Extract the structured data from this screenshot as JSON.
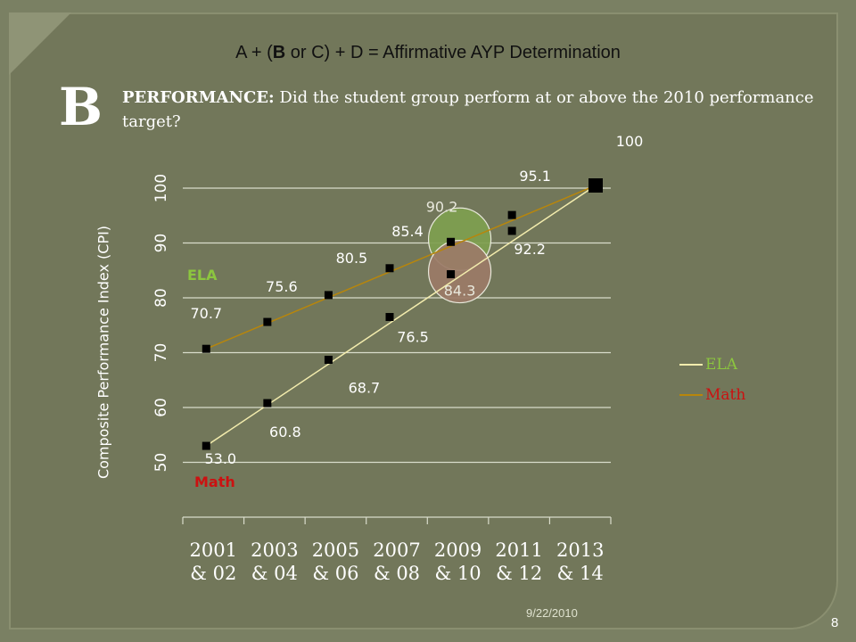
{
  "slide": {
    "formula_prefix": "A + (",
    "formula_bold": "B",
    "formula_suffix": " or C) + D = Affirmative AYP Determination",
    "section_letter": "B",
    "question_head": "PERFORMANCE:",
    "question_text": " Did the student group perform at or above the 2010 performance target?",
    "date": "9/22/2010",
    "page_number": "8"
  },
  "chart_data": {
    "type": "line",
    "ylabel": "Composite Performance Index (CPI)",
    "categories": [
      "2001 & 02",
      "2003 & 04",
      "2005 & 06",
      "2007 & 08",
      "2009 & 10",
      "2011 & 12",
      "2013 & 14"
    ],
    "yticks": [
      50,
      60,
      70,
      80,
      90,
      100
    ],
    "ylim": [
      40,
      105
    ],
    "grid": true,
    "colors": {
      "ela": "#b8860b",
      "math": "#f3ecad",
      "ela_text": "#8cc63f",
      "math_text": "#cc1111"
    },
    "inline_labels": {
      "ela": "ELA",
      "math": "Math"
    },
    "target": {
      "label": "100",
      "value": 100
    },
    "series": [
      {
        "name": "ELA",
        "key": "ela",
        "x": [
          0,
          1,
          2,
          3,
          4,
          5
        ],
        "values": [
          70.7,
          75.6,
          80.5,
          85.4,
          90.2,
          95.1
        ],
        "labels": [
          "70.7",
          "75.6",
          "80.5",
          "85.4",
          "90.2",
          "95.1"
        ],
        "highlight_index": 4,
        "highlight_color": "#7fa050"
      },
      {
        "name": "Math",
        "key": "math",
        "x": [
          0,
          1,
          2,
          3,
          4,
          5
        ],
        "values": [
          53.0,
          60.8,
          68.7,
          76.5,
          84.3,
          92.2
        ],
        "labels": [
          "53.0",
          "60.8",
          "68.7",
          "76.5",
          "84.3",
          "92.2"
        ],
        "highlight_index": 4,
        "highlight_color": "#9c7b68"
      }
    ],
    "legend": [
      "ELA",
      "Math"
    ],
    "legend_position": "right"
  }
}
